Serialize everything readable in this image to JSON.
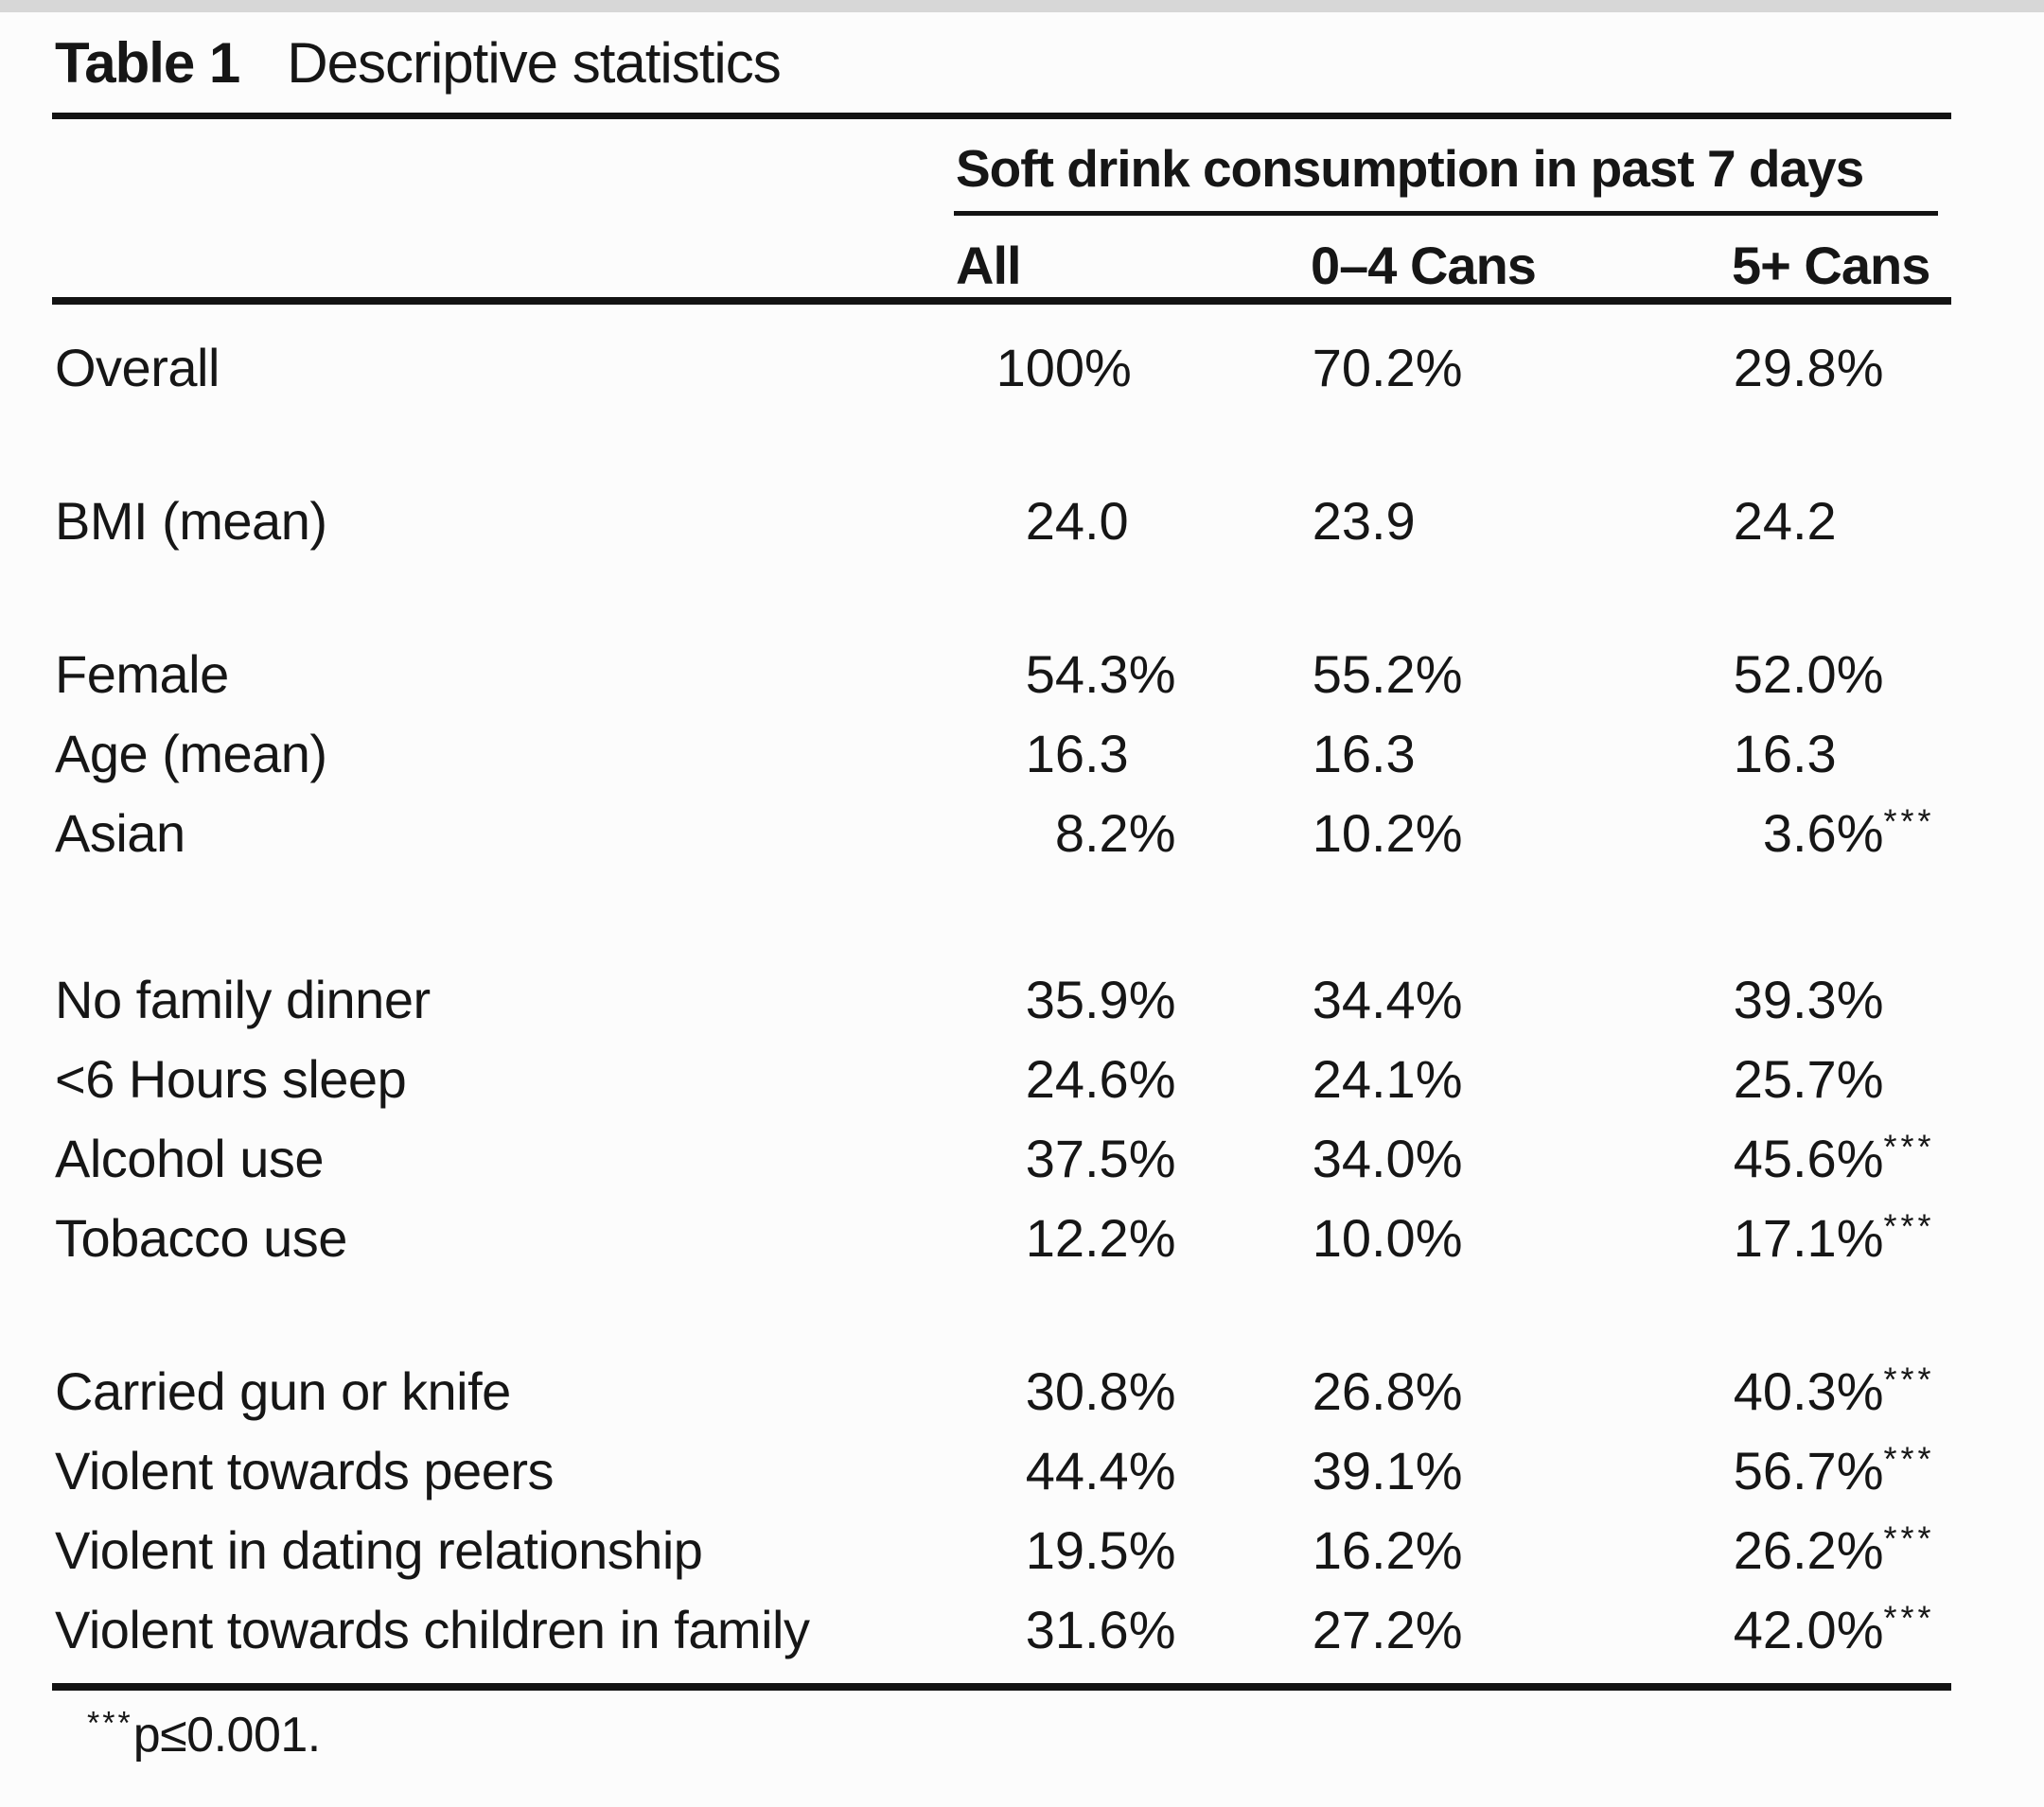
{
  "title": {
    "label": "Table 1",
    "text": "Descriptive statistics"
  },
  "header": {
    "span": "Soft drink consumption in past 7 days",
    "columns": [
      "All",
      "0–4 Cans",
      "5+ Cans"
    ]
  },
  "groups": [
    {
      "rows": [
        {
          "label": "Overall",
          "values": [
            "100%",
            "70.2%",
            "29.8%"
          ]
        }
      ]
    },
    {
      "rows": [
        {
          "label": "BMI (mean)",
          "values": [
            "24.0",
            "23.9",
            "24.2"
          ]
        }
      ]
    },
    {
      "rows": [
        {
          "label": "Female",
          "values": [
            "54.3%",
            "55.2%",
            "52.0%"
          ]
        },
        {
          "label": "Age (mean)",
          "values": [
            "16.3",
            "16.3",
            "16.3"
          ]
        },
        {
          "label": "Asian",
          "values": [
            "8.2%",
            "10.2%",
            "3.6%***"
          ]
        }
      ]
    },
    {
      "rows": [
        {
          "label": "No family dinner",
          "values": [
            "35.9%",
            "34.4%",
            "39.3%"
          ]
        },
        {
          "label": "<6 Hours sleep",
          "values": [
            "24.6%",
            "24.1%",
            "25.7%"
          ]
        },
        {
          "label": "Alcohol use",
          "values": [
            "37.5%",
            "34.0%",
            "45.6%***"
          ]
        },
        {
          "label": "Tobacco use",
          "values": [
            "12.2%",
            "10.0%",
            "17.1%***"
          ]
        }
      ]
    },
    {
      "rows": [
        {
          "label": "Carried gun or knife",
          "values": [
            "30.8%",
            "26.8%",
            "40.3%***"
          ]
        },
        {
          "label": "Violent towards peers",
          "values": [
            "44.4%",
            "39.1%",
            "56.7%***"
          ]
        },
        {
          "label": "Violent in dating relationship",
          "values": [
            "19.5%",
            "16.2%",
            "26.2%***"
          ]
        },
        {
          "label": "Violent towards children in family",
          "values": [
            "31.6%",
            "27.2%",
            "42.0%***"
          ]
        }
      ]
    }
  ],
  "footnote": {
    "stars": "***",
    "text": "p≤0.001."
  }
}
